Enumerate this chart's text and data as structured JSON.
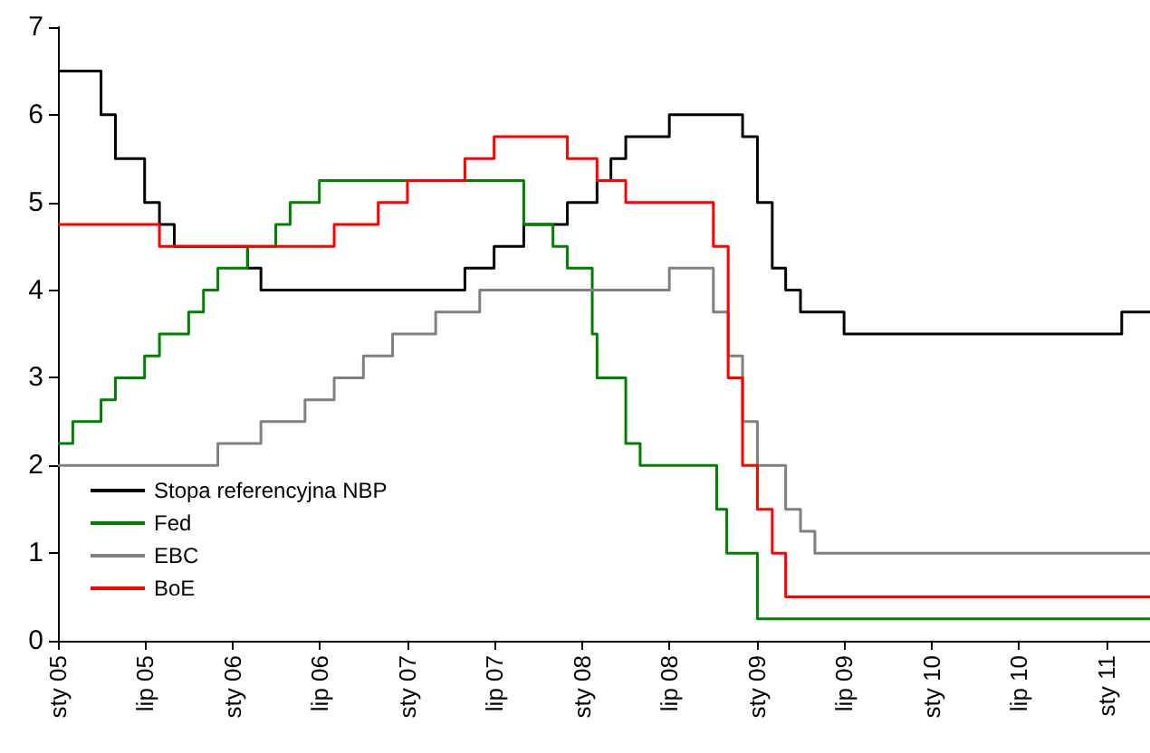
{
  "chart_data": {
    "type": "step",
    "ylim": [
      0,
      7
    ],
    "yticks": [
      0,
      1,
      2,
      3,
      4,
      5,
      6,
      7
    ],
    "xlim": [
      "2005-01",
      "2011-04"
    ],
    "xticks": [
      {
        "value": "2005-01",
        "label": "sty 05"
      },
      {
        "value": "2005-07",
        "label": "lip 05"
      },
      {
        "value": "2006-01",
        "label": "sty 06"
      },
      {
        "value": "2006-07",
        "label": "lip 06"
      },
      {
        "value": "2007-01",
        "label": "sty 07"
      },
      {
        "value": "2007-07",
        "label": "lip 07"
      },
      {
        "value": "2008-01",
        "label": "sty 08"
      },
      {
        "value": "2008-07",
        "label": "lip 08"
      },
      {
        "value": "2009-01",
        "label": "sty 09"
      },
      {
        "value": "2009-07",
        "label": "lip 09"
      },
      {
        "value": "2010-01",
        "label": "sty 10"
      },
      {
        "value": "2010-07",
        "label": "lip 10"
      },
      {
        "value": "2011-01",
        "label": "sty 11"
      }
    ],
    "grid": false,
    "legend": "bottom left",
    "marker": "none",
    "line_style": "solid",
    "series": [
      {
        "name": "Stopa referencyjna NBP",
        "color": "#000000",
        "x": [
          "2005-01",
          "2005-04",
          "2005-05",
          "2005-07",
          "2005-08",
          "2005-09",
          "2006-02",
          "2006-03",
          "2007-05",
          "2007-07",
          "2007-09",
          "2007-12",
          "2008-02",
          "2008-03",
          "2008-04",
          "2008-07",
          "2008-12",
          "2009-01",
          "2009-02",
          "2009-03",
          "2009-04",
          "2009-07",
          "2011-02",
          "2011-04"
        ],
        "values": [
          6.5,
          6.0,
          5.5,
          5.0,
          4.75,
          4.5,
          4.25,
          4.0,
          4.25,
          4.5,
          4.75,
          5.0,
          5.25,
          5.5,
          5.75,
          6.0,
          5.75,
          5.0,
          4.25,
          4.0,
          3.75,
          3.5,
          3.75,
          3.75
        ]
      },
      {
        "name": "Fed",
        "color": "#008000",
        "x": [
          "2005-01",
          "2005-02",
          "2005-04",
          "2005-05",
          "2005-07",
          "2005-08",
          "2005-10",
          "2005-11",
          "2005-12",
          "2006-02",
          "2006-04",
          "2006-05",
          "2006-07",
          "2007-09",
          "2007-11",
          "2007-12",
          "2008-01-22",
          "2008-02-01",
          "2008-04",
          "2008-05",
          "2008-10-08",
          "2008-10-29",
          "2009-01",
          "2011-04"
        ],
        "values": [
          2.25,
          2.5,
          2.75,
          3.0,
          3.25,
          3.5,
          3.75,
          4.0,
          4.25,
          4.5,
          4.75,
          5.0,
          5.25,
          4.75,
          4.5,
          4.25,
          3.5,
          3.0,
          2.25,
          2.0,
          1.5,
          1.0,
          0.25,
          0.25
        ]
      },
      {
        "name": "EBC",
        "color": "#808080",
        "x": [
          "2005-01",
          "2005-12",
          "2006-03",
          "2006-06",
          "2006-08",
          "2006-10",
          "2006-12",
          "2007-03",
          "2007-06",
          "2008-07",
          "2008-10",
          "2008-11",
          "2008-12",
          "2009-01",
          "2009-03",
          "2009-04",
          "2009-05",
          "2011-04"
        ],
        "values": [
          2.0,
          2.25,
          2.5,
          2.75,
          3.0,
          3.25,
          3.5,
          3.75,
          4.0,
          4.25,
          3.75,
          3.25,
          2.5,
          2.0,
          1.5,
          1.25,
          1.0,
          1.0
        ]
      },
      {
        "name": "BoE",
        "color": "#ff0000",
        "x": [
          "2005-01",
          "2005-08",
          "2006-08",
          "2006-11",
          "2007-01",
          "2007-05",
          "2007-07",
          "2007-12",
          "2008-02",
          "2008-04",
          "2008-10",
          "2008-11",
          "2008-12",
          "2009-01",
          "2009-02",
          "2009-03",
          "2011-04"
        ],
        "values": [
          4.75,
          4.5,
          4.75,
          5.0,
          5.25,
          5.5,
          5.75,
          5.5,
          5.25,
          5.0,
          4.5,
          3.0,
          2.0,
          1.5,
          1.0,
          0.5,
          0.5
        ]
      }
    ]
  }
}
